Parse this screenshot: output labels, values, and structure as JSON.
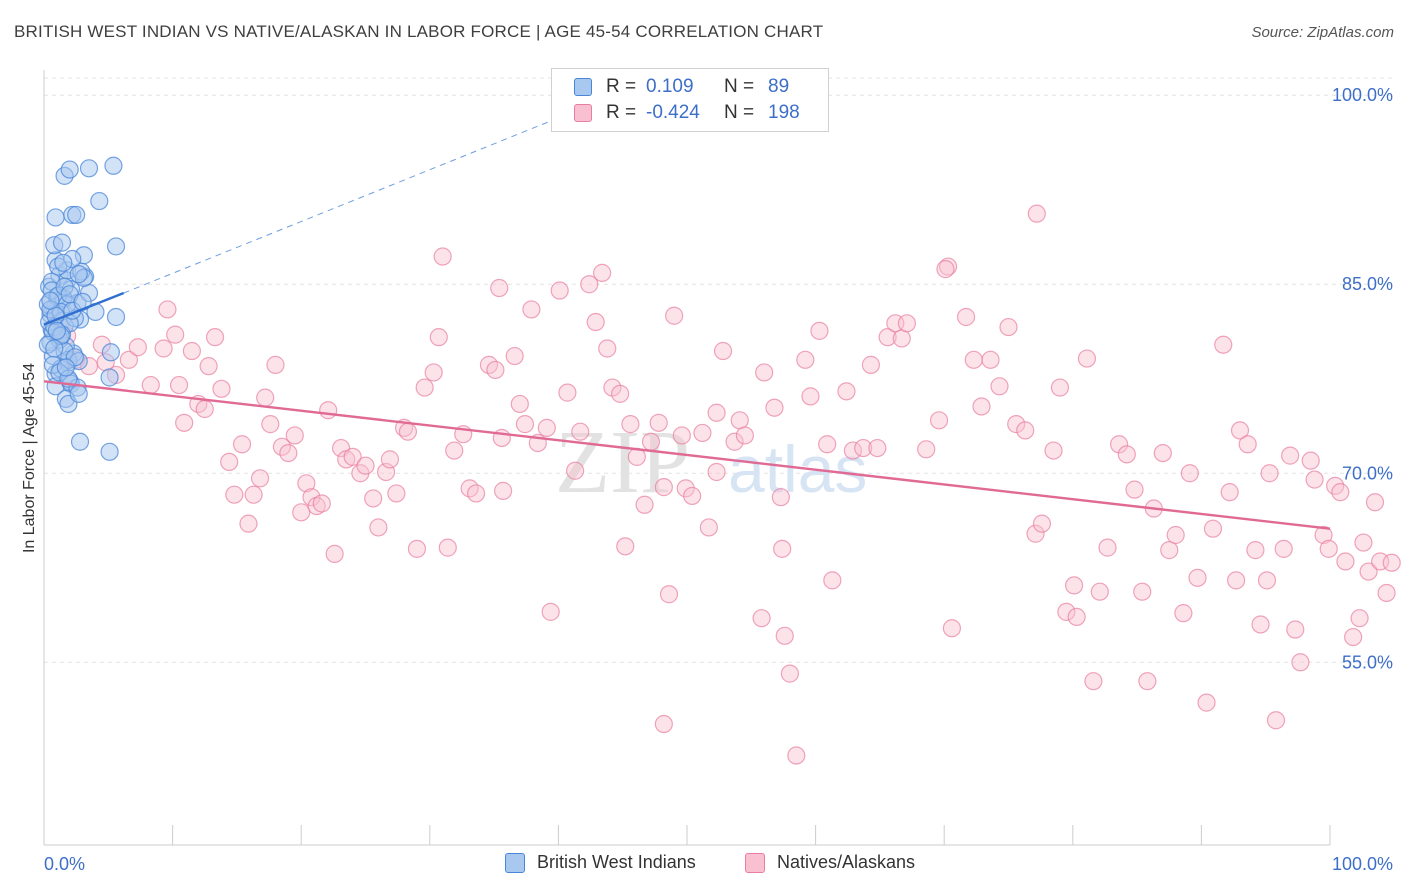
{
  "header": {
    "title": "BRITISH WEST INDIAN VS NATIVE/ALASKAN IN LABOR FORCE | AGE 45-54 CORRELATION CHART",
    "source": "Source: ZipAtlas.com"
  },
  "watermark": {
    "zip": "ZIP",
    "atlas": "atlas"
  },
  "legend": {
    "series": [
      {
        "name": "British West Indians",
        "r_label": "R =",
        "r_value": "0.109",
        "n_label": "N =",
        "n_value": "89",
        "fill": "#a8c8f0",
        "stroke": "#4a86d8"
      },
      {
        "name": "Natives/Alaskans",
        "r_label": "R =",
        "r_value": "-0.424",
        "n_label": "N =",
        "n_value": "198",
        "fill": "#f8c0d0",
        "stroke": "#e87fa0"
      }
    ]
  },
  "chart_data": {
    "type": "scatter",
    "ylabel": "In Labor Force | Age 45-54",
    "xlabel": "",
    "x_tick_labels": [
      "0.0%",
      "100.0%"
    ],
    "y_tick_labels": [
      "100.0%",
      "85.0%",
      "70.0%",
      "55.0%"
    ],
    "y_ticks": [
      100,
      85,
      70,
      55
    ],
    "xlim": [
      0,
      100
    ],
    "ylim": [
      40.5,
      102
    ],
    "grid": true,
    "colors": {
      "blue": "#4a86d8",
      "blue_fill": "#a8c8f0",
      "pink": "#e87fa0",
      "pink_fill": "#f8c0d0",
      "tick_text": "#3d6fc8"
    },
    "series": [
      {
        "name": "British West Indians",
        "trend": {
          "x": [
            0,
            6.2
          ],
          "y": [
            81.8,
            84.3
          ],
          "dashed_extension_to": [
            40,
            98.2
          ]
        },
        "points": [
          [
            0.4,
            84.8
          ],
          [
            0.8,
            83.1
          ],
          [
            1.2,
            85.7
          ],
          [
            0.5,
            82.6
          ],
          [
            1.5,
            83.8
          ],
          [
            0.9,
            86.9
          ],
          [
            1.8,
            85.3
          ],
          [
            2.1,
            84.6
          ],
          [
            0.6,
            81.4
          ],
          [
            1.1,
            80.9
          ],
          [
            1.4,
            82.1
          ],
          [
            0.7,
            79.3
          ],
          [
            1.9,
            78.8
          ],
          [
            2.3,
            79.5
          ],
          [
            0.3,
            83.4
          ],
          [
            1.6,
            81.7
          ],
          [
            2.6,
            83.5
          ],
          [
            0.9,
            77.9
          ],
          [
            1.3,
            78.3
          ],
          [
            2.0,
            77.3
          ],
          [
            0.5,
            80.4
          ],
          [
            1.7,
            80.1
          ],
          [
            2.8,
            82.2
          ],
          [
            3.2,
            85.6
          ],
          [
            3.5,
            84.3
          ],
          [
            4.0,
            82.8
          ],
          [
            0.8,
            88.1
          ],
          [
            1.4,
            88.3
          ],
          [
            2.2,
            90.5
          ],
          [
            0.9,
            90.3
          ],
          [
            1.6,
            93.6
          ],
          [
            2.0,
            94.1
          ],
          [
            3.5,
            94.2
          ],
          [
            5.4,
            94.4
          ],
          [
            4.3,
            91.6
          ],
          [
            2.5,
            90.5
          ],
          [
            1.8,
            86.1
          ],
          [
            2.9,
            86.0
          ],
          [
            3.1,
            85.5
          ],
          [
            0.6,
            85.2
          ],
          [
            1.0,
            84.0
          ],
          [
            1.5,
            83.9
          ],
          [
            2.4,
            82.3
          ],
          [
            0.4,
            82.0
          ],
          [
            0.7,
            81.2
          ],
          [
            1.2,
            80.6
          ],
          [
            1.9,
            79.0
          ],
          [
            2.7,
            78.9
          ],
          [
            0.9,
            76.9
          ],
          [
            2.1,
            77.1
          ],
          [
            2.6,
            76.8
          ],
          [
            1.7,
            75.9
          ],
          [
            1.9,
            75.5
          ],
          [
            2.7,
            76.3
          ],
          [
            5.6,
            82.4
          ],
          [
            5.2,
            79.6
          ],
          [
            5.1,
            77.6
          ],
          [
            2.8,
            72.5
          ],
          [
            5.1,
            71.7
          ],
          [
            5.6,
            88.0
          ],
          [
            3.1,
            87.3
          ],
          [
            2.2,
            87.0
          ],
          [
            0.6,
            84.5
          ],
          [
            1.1,
            84.1
          ],
          [
            1.8,
            83.4
          ],
          [
            0.5,
            83.0
          ],
          [
            1.3,
            82.8
          ],
          [
            2.0,
            81.9
          ],
          [
            0.8,
            81.6
          ],
          [
            1.4,
            81.0
          ],
          [
            0.3,
            80.2
          ],
          [
            1.6,
            79.7
          ],
          [
            2.4,
            79.2
          ],
          [
            0.7,
            78.6
          ],
          [
            1.2,
            78.0
          ],
          [
            1.9,
            77.5
          ],
          [
            0.9,
            82.5
          ],
          [
            1.6,
            84.8
          ],
          [
            1.1,
            86.4
          ],
          [
            2.7,
            85.8
          ],
          [
            1.3,
            80.9
          ],
          [
            0.5,
            83.7
          ],
          [
            2.2,
            82.9
          ],
          [
            0.8,
            79.9
          ],
          [
            1.7,
            78.4
          ],
          [
            1.0,
            81.3
          ],
          [
            2.0,
            84.2
          ],
          [
            3.0,
            83.6
          ],
          [
            1.5,
            86.7
          ]
        ]
      },
      {
        "name": "Natives/Alaskans",
        "trend": {
          "x": [
            0,
            100
          ],
          "y": [
            77.3,
            65.6
          ]
        },
        "points": [
          [
            1.2,
            82.1
          ],
          [
            1.8,
            80.9
          ],
          [
            2.5,
            79.0
          ],
          [
            3.5,
            78.5
          ],
          [
            4.5,
            80.2
          ],
          [
            4.8,
            78.8
          ],
          [
            5.6,
            77.8
          ],
          [
            6.6,
            79.0
          ],
          [
            7.3,
            80.0
          ],
          [
            8.3,
            77.0
          ],
          [
            9.3,
            79.9
          ],
          [
            9.6,
            83.0
          ],
          [
            10.2,
            81.0
          ],
          [
            10.5,
            77.0
          ],
          [
            10.9,
            74.0
          ],
          [
            11.5,
            79.7
          ],
          [
            12.0,
            75.5
          ],
          [
            12.5,
            75.1
          ],
          [
            12.8,
            78.5
          ],
          [
            13.3,
            80.8
          ],
          [
            13.8,
            76.7
          ],
          [
            14.4,
            70.9
          ],
          [
            14.8,
            68.3
          ],
          [
            15.4,
            72.3
          ],
          [
            15.9,
            66.0
          ],
          [
            16.3,
            68.3
          ],
          [
            16.8,
            69.6
          ],
          [
            17.2,
            76.0
          ],
          [
            17.6,
            73.9
          ],
          [
            18.0,
            78.6
          ],
          [
            18.5,
            72.1
          ],
          [
            19.0,
            71.6
          ],
          [
            19.5,
            73.0
          ],
          [
            20.0,
            66.9
          ],
          [
            20.4,
            69.2
          ],
          [
            20.8,
            68.1
          ],
          [
            21.2,
            67.4
          ],
          [
            21.6,
            67.6
          ],
          [
            22.1,
            75.0
          ],
          [
            22.6,
            63.6
          ],
          [
            23.1,
            72.0
          ],
          [
            23.5,
            71.1
          ],
          [
            24.0,
            71.3
          ],
          [
            24.6,
            70.0
          ],
          [
            25.0,
            70.6
          ],
          [
            25.6,
            68.0
          ],
          [
            26.0,
            65.7
          ],
          [
            26.6,
            70.1
          ],
          [
            26.9,
            71.1
          ],
          [
            27.4,
            68.4
          ],
          [
            28.0,
            73.6
          ],
          [
            28.3,
            73.3
          ],
          [
            29.0,
            64.0
          ],
          [
            29.6,
            76.8
          ],
          [
            30.3,
            78.0
          ],
          [
            30.7,
            80.8
          ],
          [
            31.4,
            64.1
          ],
          [
            31.9,
            71.8
          ],
          [
            32.6,
            73.1
          ],
          [
            33.1,
            68.8
          ],
          [
            33.6,
            68.4
          ],
          [
            34.6,
            78.6
          ],
          [
            35.1,
            78.2
          ],
          [
            35.6,
            72.8
          ],
          [
            35.7,
            68.6
          ],
          [
            36.6,
            79.3
          ],
          [
            37.0,
            75.5
          ],
          [
            37.4,
            73.9
          ],
          [
            37.9,
            83.0
          ],
          [
            38.4,
            72.4
          ],
          [
            39.1,
            73.6
          ],
          [
            39.4,
            59.0
          ],
          [
            40.1,
            84.5
          ],
          [
            40.7,
            76.4
          ],
          [
            41.3,
            70.2
          ],
          [
            41.7,
            73.3
          ],
          [
            42.4,
            85.0
          ],
          [
            42.9,
            82.0
          ],
          [
            43.4,
            85.9
          ],
          [
            43.8,
            79.9
          ],
          [
            44.2,
            76.8
          ],
          [
            44.8,
            76.3
          ],
          [
            45.2,
            64.2
          ],
          [
            45.6,
            73.9
          ],
          [
            46.1,
            71.3
          ],
          [
            46.7,
            67.5
          ],
          [
            47.2,
            72.5
          ],
          [
            47.8,
            74.0
          ],
          [
            48.2,
            68.9
          ],
          [
            48.6,
            60.4
          ],
          [
            49.0,
            82.5
          ],
          [
            49.6,
            73.0
          ],
          [
            49.9,
            68.8
          ],
          [
            50.4,
            68.2
          ],
          [
            51.2,
            73.2
          ],
          [
            51.7,
            65.7
          ],
          [
            52.3,
            70.1
          ],
          [
            52.8,
            79.7
          ],
          [
            53.7,
            72.5
          ],
          [
            54.1,
            74.2
          ],
          [
            54.5,
            73.0
          ],
          [
            56.0,
            78.0
          ],
          [
            56.8,
            75.2
          ],
          [
            57.3,
            68.1
          ],
          [
            57.6,
            57.1
          ],
          [
            58.0,
            54.1
          ],
          [
            58.5,
            47.6
          ],
          [
            59.2,
            79.0
          ],
          [
            59.6,
            76.1
          ],
          [
            60.3,
            81.3
          ],
          [
            60.9,
            72.3
          ],
          [
            61.3,
            61.5
          ],
          [
            62.4,
            76.5
          ],
          [
            62.9,
            71.8
          ],
          [
            63.7,
            72.0
          ],
          [
            64.3,
            78.6
          ],
          [
            64.8,
            72.0
          ],
          [
            65.6,
            80.8
          ],
          [
            66.2,
            81.9
          ],
          [
            66.7,
            80.7
          ],
          [
            67.1,
            81.9
          ],
          [
            68.6,
            71.9
          ],
          [
            69.6,
            74.2
          ],
          [
            70.3,
            86.4
          ],
          [
            70.6,
            57.7
          ],
          [
            71.7,
            82.4
          ],
          [
            72.3,
            79.0
          ],
          [
            72.9,
            75.3
          ],
          [
            73.6,
            79.0
          ],
          [
            74.3,
            76.9
          ],
          [
            75.0,
            81.6
          ],
          [
            75.6,
            73.9
          ],
          [
            76.3,
            73.4
          ],
          [
            77.1,
            65.2
          ],
          [
            77.6,
            66.0
          ],
          [
            78.5,
            71.8
          ],
          [
            79.0,
            76.8
          ],
          [
            79.5,
            59.0
          ],
          [
            80.1,
            61.1
          ],
          [
            80.3,
            58.6
          ],
          [
            81.1,
            79.1
          ],
          [
            81.6,
            53.5
          ],
          [
            82.1,
            60.6
          ],
          [
            82.7,
            64.1
          ],
          [
            83.6,
            72.3
          ],
          [
            84.2,
            71.5
          ],
          [
            84.8,
            68.7
          ],
          [
            85.4,
            60.6
          ],
          [
            85.8,
            53.5
          ],
          [
            86.3,
            67.2
          ],
          [
            87.0,
            71.6
          ],
          [
            87.5,
            63.9
          ],
          [
            88.0,
            65.1
          ],
          [
            88.6,
            58.9
          ],
          [
            89.1,
            70.0
          ],
          [
            89.7,
            61.7
          ],
          [
            90.4,
            51.8
          ],
          [
            90.9,
            65.6
          ],
          [
            91.7,
            80.2
          ],
          [
            92.2,
            68.5
          ],
          [
            92.7,
            61.5
          ],
          [
            93.0,
            73.4
          ],
          [
            93.6,
            72.3
          ],
          [
            94.2,
            63.9
          ],
          [
            94.6,
            58.0
          ],
          [
            95.1,
            61.5
          ],
          [
            95.3,
            70.0
          ],
          [
            95.8,
            50.4
          ],
          [
            96.4,
            64.0
          ],
          [
            96.9,
            71.4
          ],
          [
            97.3,
            57.6
          ],
          [
            97.7,
            55.0
          ],
          [
            98.5,
            71.0
          ],
          [
            98.8,
            69.5
          ],
          [
            99.5,
            65.1
          ],
          [
            99.9,
            64.0
          ],
          [
            100.4,
            69.0
          ],
          [
            100.8,
            68.5
          ],
          [
            101.2,
            63.0
          ],
          [
            101.8,
            57.0
          ],
          [
            102.3,
            58.5
          ],
          [
            102.6,
            64.5
          ],
          [
            103.0,
            62.2
          ],
          [
            103.5,
            67.7
          ],
          [
            103.9,
            63.0
          ],
          [
            104.4,
            60.5
          ],
          [
            104.8,
            62.9
          ],
          [
            31.0,
            87.2
          ],
          [
            35.4,
            84.7
          ],
          [
            48.2,
            50.1
          ],
          [
            52.3,
            74.8
          ],
          [
            57.4,
            64.0
          ],
          [
            77.2,
            90.6
          ],
          [
            70.1,
            86.2
          ],
          [
            55.8,
            58.5
          ]
        ]
      }
    ]
  }
}
